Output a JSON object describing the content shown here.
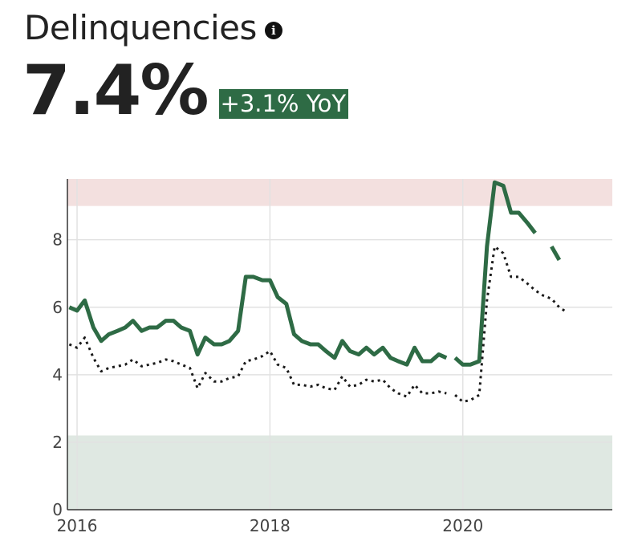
{
  "header": {
    "title": "Delinquencies",
    "info_icon": "info-icon",
    "value": "7.4%",
    "change_badge": "+3.1% YoY",
    "badge_color": "#2e6b45"
  },
  "chart_data": {
    "type": "line",
    "x_unit": "year",
    "xlim": [
      2015.9,
      2021.55
    ],
    "ylim": [
      0,
      9.8
    ],
    "xticks": [
      {
        "value": 2016,
        "label": "2016"
      },
      {
        "value": 2018,
        "label": "2018"
      },
      {
        "value": 2020,
        "label": "2020"
      }
    ],
    "yticks": [
      {
        "value": 0,
        "label": "0"
      },
      {
        "value": 2,
        "label": "2"
      },
      {
        "value": 4,
        "label": "4"
      },
      {
        "value": 6,
        "label": "6"
      },
      {
        "value": 8,
        "label": "8"
      }
    ],
    "grid": true,
    "legend": "none",
    "bands": [
      {
        "y0": 9.0,
        "y1": 9.8,
        "color": "#f3e0df"
      },
      {
        "y0": 0,
        "y1": 2.2,
        "color": "#dfe8e2"
      }
    ],
    "series": [
      {
        "color": "#2e6b45",
        "style": "solid",
        "segments": [
          [
            [
              2015.92,
              6.0
            ],
            [
              2016.0,
              5.9
            ],
            [
              2016.08,
              6.2
            ],
            [
              2016.17,
              5.4
            ],
            [
              2016.25,
              5.0
            ],
            [
              2016.33,
              5.2
            ],
            [
              2016.42,
              5.3
            ],
            [
              2016.5,
              5.4
            ],
            [
              2016.58,
              5.6
            ],
            [
              2016.67,
              5.3
            ],
            [
              2016.75,
              5.4
            ],
            [
              2016.83,
              5.4
            ],
            [
              2016.92,
              5.6
            ],
            [
              2017.0,
              5.6
            ],
            [
              2017.08,
              5.4
            ],
            [
              2017.17,
              5.3
            ],
            [
              2017.25,
              4.6
            ],
            [
              2017.33,
              5.1
            ],
            [
              2017.42,
              4.9
            ],
            [
              2017.5,
              4.9
            ],
            [
              2017.58,
              5.0
            ],
            [
              2017.67,
              5.3
            ],
            [
              2017.75,
              6.9
            ],
            [
              2017.83,
              6.9
            ],
            [
              2017.92,
              6.8
            ],
            [
              2018.0,
              6.8
            ],
            [
              2018.08,
              6.3
            ],
            [
              2018.17,
              6.1
            ],
            [
              2018.25,
              5.2
            ],
            [
              2018.33,
              5.0
            ],
            [
              2018.42,
              4.9
            ],
            [
              2018.5,
              4.9
            ],
            [
              2018.58,
              4.7
            ],
            [
              2018.67,
              4.5
            ],
            [
              2018.75,
              5.0
            ],
            [
              2018.83,
              4.7
            ],
            [
              2018.92,
              4.6
            ],
            [
              2019.0,
              4.8
            ],
            [
              2019.08,
              4.6
            ],
            [
              2019.17,
              4.8
            ],
            [
              2019.25,
              4.5
            ],
            [
              2019.33,
              4.4
            ],
            [
              2019.42,
              4.3
            ],
            [
              2019.5,
              4.8
            ],
            [
              2019.58,
              4.4
            ],
            [
              2019.67,
              4.4
            ],
            [
              2019.75,
              4.6
            ],
            [
              2019.83,
              4.5
            ]
          ],
          [
            [
              2019.92,
              4.5
            ],
            [
              2020.0,
              4.3
            ],
            [
              2020.08,
              4.3
            ],
            [
              2020.17,
              4.4
            ],
            [
              2020.25,
              7.8
            ],
            [
              2020.33,
              9.7
            ],
            [
              2020.42,
              9.6
            ],
            [
              2020.5,
              8.8
            ],
            [
              2020.58,
              8.8
            ],
            [
              2020.67,
              8.5
            ],
            [
              2020.75,
              8.2
            ]
          ],
          [
            [
              2020.92,
              7.8
            ],
            [
              2021.0,
              7.4
            ]
          ]
        ]
      },
      {
        "color": "#1a1a1a",
        "style": "dotted",
        "segments": [
          [
            [
              2015.92,
              4.9
            ],
            [
              2016.0,
              4.8
            ],
            [
              2016.08,
              5.1
            ],
            [
              2016.17,
              4.5
            ],
            [
              2016.25,
              4.1
            ],
            [
              2016.33,
              4.2
            ],
            [
              2016.42,
              4.25
            ],
            [
              2016.5,
              4.3
            ],
            [
              2016.58,
              4.45
            ],
            [
              2016.67,
              4.25
            ],
            [
              2016.75,
              4.3
            ],
            [
              2016.83,
              4.35
            ],
            [
              2016.92,
              4.45
            ],
            [
              2017.0,
              4.4
            ],
            [
              2017.08,
              4.3
            ],
            [
              2017.17,
              4.2
            ],
            [
              2017.25,
              3.6
            ],
            [
              2017.33,
              4.05
            ],
            [
              2017.42,
              3.8
            ],
            [
              2017.5,
              3.8
            ],
            [
              2017.58,
              3.9
            ],
            [
              2017.67,
              3.95
            ],
            [
              2017.75,
              4.4
            ],
            [
              2017.83,
              4.45
            ],
            [
              2017.92,
              4.55
            ],
            [
              2018.0,
              4.7
            ],
            [
              2018.08,
              4.3
            ],
            [
              2018.17,
              4.2
            ],
            [
              2018.25,
              3.7
            ],
            [
              2018.33,
              3.7
            ],
            [
              2018.42,
              3.65
            ],
            [
              2018.5,
              3.7
            ],
            [
              2018.58,
              3.6
            ],
            [
              2018.67,
              3.55
            ],
            [
              2018.75,
              3.95
            ],
            [
              2018.83,
              3.65
            ],
            [
              2018.92,
              3.7
            ],
            [
              2019.0,
              3.85
            ],
            [
              2019.08,
              3.8
            ],
            [
              2019.17,
              3.85
            ],
            [
              2019.25,
              3.6
            ],
            [
              2019.33,
              3.45
            ],
            [
              2019.42,
              3.35
            ],
            [
              2019.5,
              3.7
            ],
            [
              2019.58,
              3.45
            ],
            [
              2019.67,
              3.45
            ],
            [
              2019.75,
              3.5
            ],
            [
              2019.83,
              3.45
            ]
          ],
          [
            [
              2019.92,
              3.4
            ],
            [
              2020.0,
              3.2
            ],
            [
              2020.08,
              3.25
            ],
            [
              2020.17,
              3.4
            ],
            [
              2020.25,
              6.2
            ],
            [
              2020.33,
              7.8
            ],
            [
              2020.42,
              7.6
            ],
            [
              2020.5,
              6.9
            ],
            [
              2020.58,
              6.9
            ],
            [
              2020.67,
              6.7
            ],
            [
              2020.75,
              6.5
            ],
            [
              2020.83,
              6.35
            ],
            [
              2020.92,
              6.25
            ],
            [
              2021.0,
              6.0
            ],
            [
              2021.08,
              5.85
            ]
          ]
        ]
      }
    ]
  }
}
